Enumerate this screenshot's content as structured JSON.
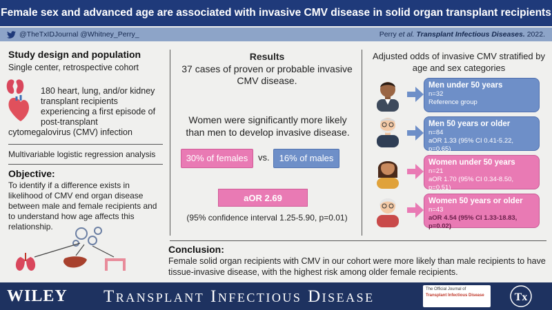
{
  "title": "Female sex and advanced age are associated with invasive CMV disease in solid organ transplant recipients",
  "credits": {
    "handles": "@TheTxIDJournal @Whitney_Perry_",
    "author": "Perry",
    "etal": "et al.",
    "journal": "Transplant Infectious Diseases.",
    "year": "2022."
  },
  "study": {
    "title": "Study design and population",
    "subtitle": "Single center, retrospective cohort",
    "patients_line1": "180 heart, lung, and/or kidney transplant recipients experiencing a first episode of post-transplant",
    "patients_line2": "cytomegalovirus (CMV) infection",
    "analysis": "Multivariable logistic regression analysis"
  },
  "objective": {
    "title": "Objective:",
    "text": "To identify if a difference exists in likelihood of CMV end organ disease between male and female recipients and to understand how age affects this relationship."
  },
  "results": {
    "title": "Results",
    "cases": "37 cases of proven or probable invasive CMV disease.",
    "women_statement": "Women were significantly more likely than men to develop invasive disease.",
    "female_pct": "30% of females",
    "vs": "vs.",
    "male_pct": "16% of males",
    "aor": "aOR 2.69",
    "ci": "(95% confidence interval 1.25-5.90, p=0.01)"
  },
  "stratified": {
    "title": "Adjusted odds of invasive CMV stratified by age and sex categories",
    "groups": [
      {
        "name": "Men under 50 years",
        "n": "n=32",
        "detail": "Reference group"
      },
      {
        "name": "Men 50 years or older",
        "n": "n=84",
        "detail": "aOR 1.33 (95% CI 0.41-5.22, p=0.65)"
      },
      {
        "name": "Women under 50 years",
        "n": "n=21",
        "detail": "aOR 1.70 (95% CI 0.34-8.50, p=0.51)"
      },
      {
        "name": "Women 50 years or older",
        "n": "n=43",
        "detail": "aOR 4.54 (95% CI 1.33-18.83, p=0.02)"
      }
    ]
  },
  "conclusion": {
    "title": "Conclusion:",
    "text": "Female solid organ recipients with CMV in our cohort were more likely than male recipients to have tissue-invasive disease, with the highest risk among older female recipients."
  },
  "footer": {
    "publisher": "WILEY",
    "journal": "Transplant Infectious Disease",
    "official_line1": "The Official Journal of",
    "official_line2": "Transplant Infectious Disease",
    "tx_logo": "Tx"
  },
  "colors": {
    "title_bar": "#1f3a7a",
    "credit_bar": "#8da4c8",
    "female": "#e97ab4",
    "male": "#6e8fc8",
    "footer": "#1e3260"
  }
}
